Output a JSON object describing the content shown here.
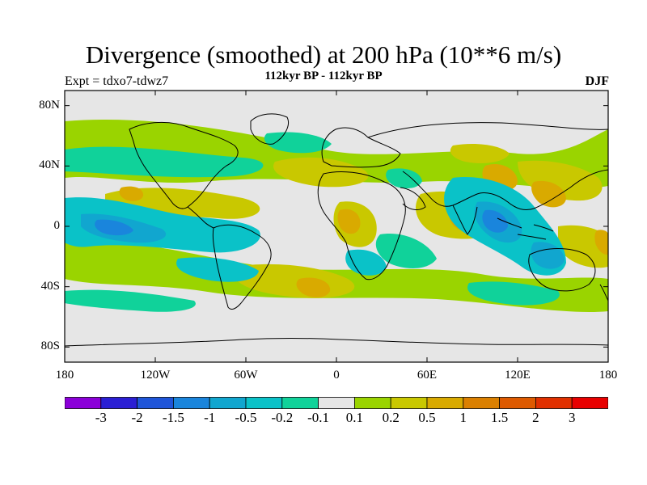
{
  "header": {
    "title": "Divergence (smoothed) at 200 hPa (10**6 m/s)",
    "subtitle": "112kyr BP - 112kyr BP",
    "experiment": "Expt = tdxo7-tdwz7",
    "season": "DJF"
  },
  "map": {
    "x_ticks": [
      "180",
      "120W",
      "60W",
      "0",
      "60E",
      "120E",
      "180"
    ],
    "y_ticks": [
      "80N",
      "40N",
      "0",
      "40S",
      "80S"
    ],
    "projection": "cylindrical equidistant",
    "background_color": "#e6e6e6",
    "coastline_color": "#000000"
  },
  "colorbar": {
    "levels": [
      "-3",
      "-2",
      "-1.5",
      "-1",
      "-0.5",
      "-0.2",
      "-0.1",
      "0.1",
      "0.2",
      "0.5",
      "1",
      "1.5",
      "2",
      "3"
    ],
    "colors": [
      "#8b00d8",
      "#2b1fd4",
      "#1f55d9",
      "#1a85dc",
      "#11a6cf",
      "#0ac2c8",
      "#10d29a",
      "#e6e6e6",
      "#9ad400",
      "#c9c800",
      "#d9aa00",
      "#db8000",
      "#de5a00",
      "#e03000",
      "#e80000"
    ]
  }
}
